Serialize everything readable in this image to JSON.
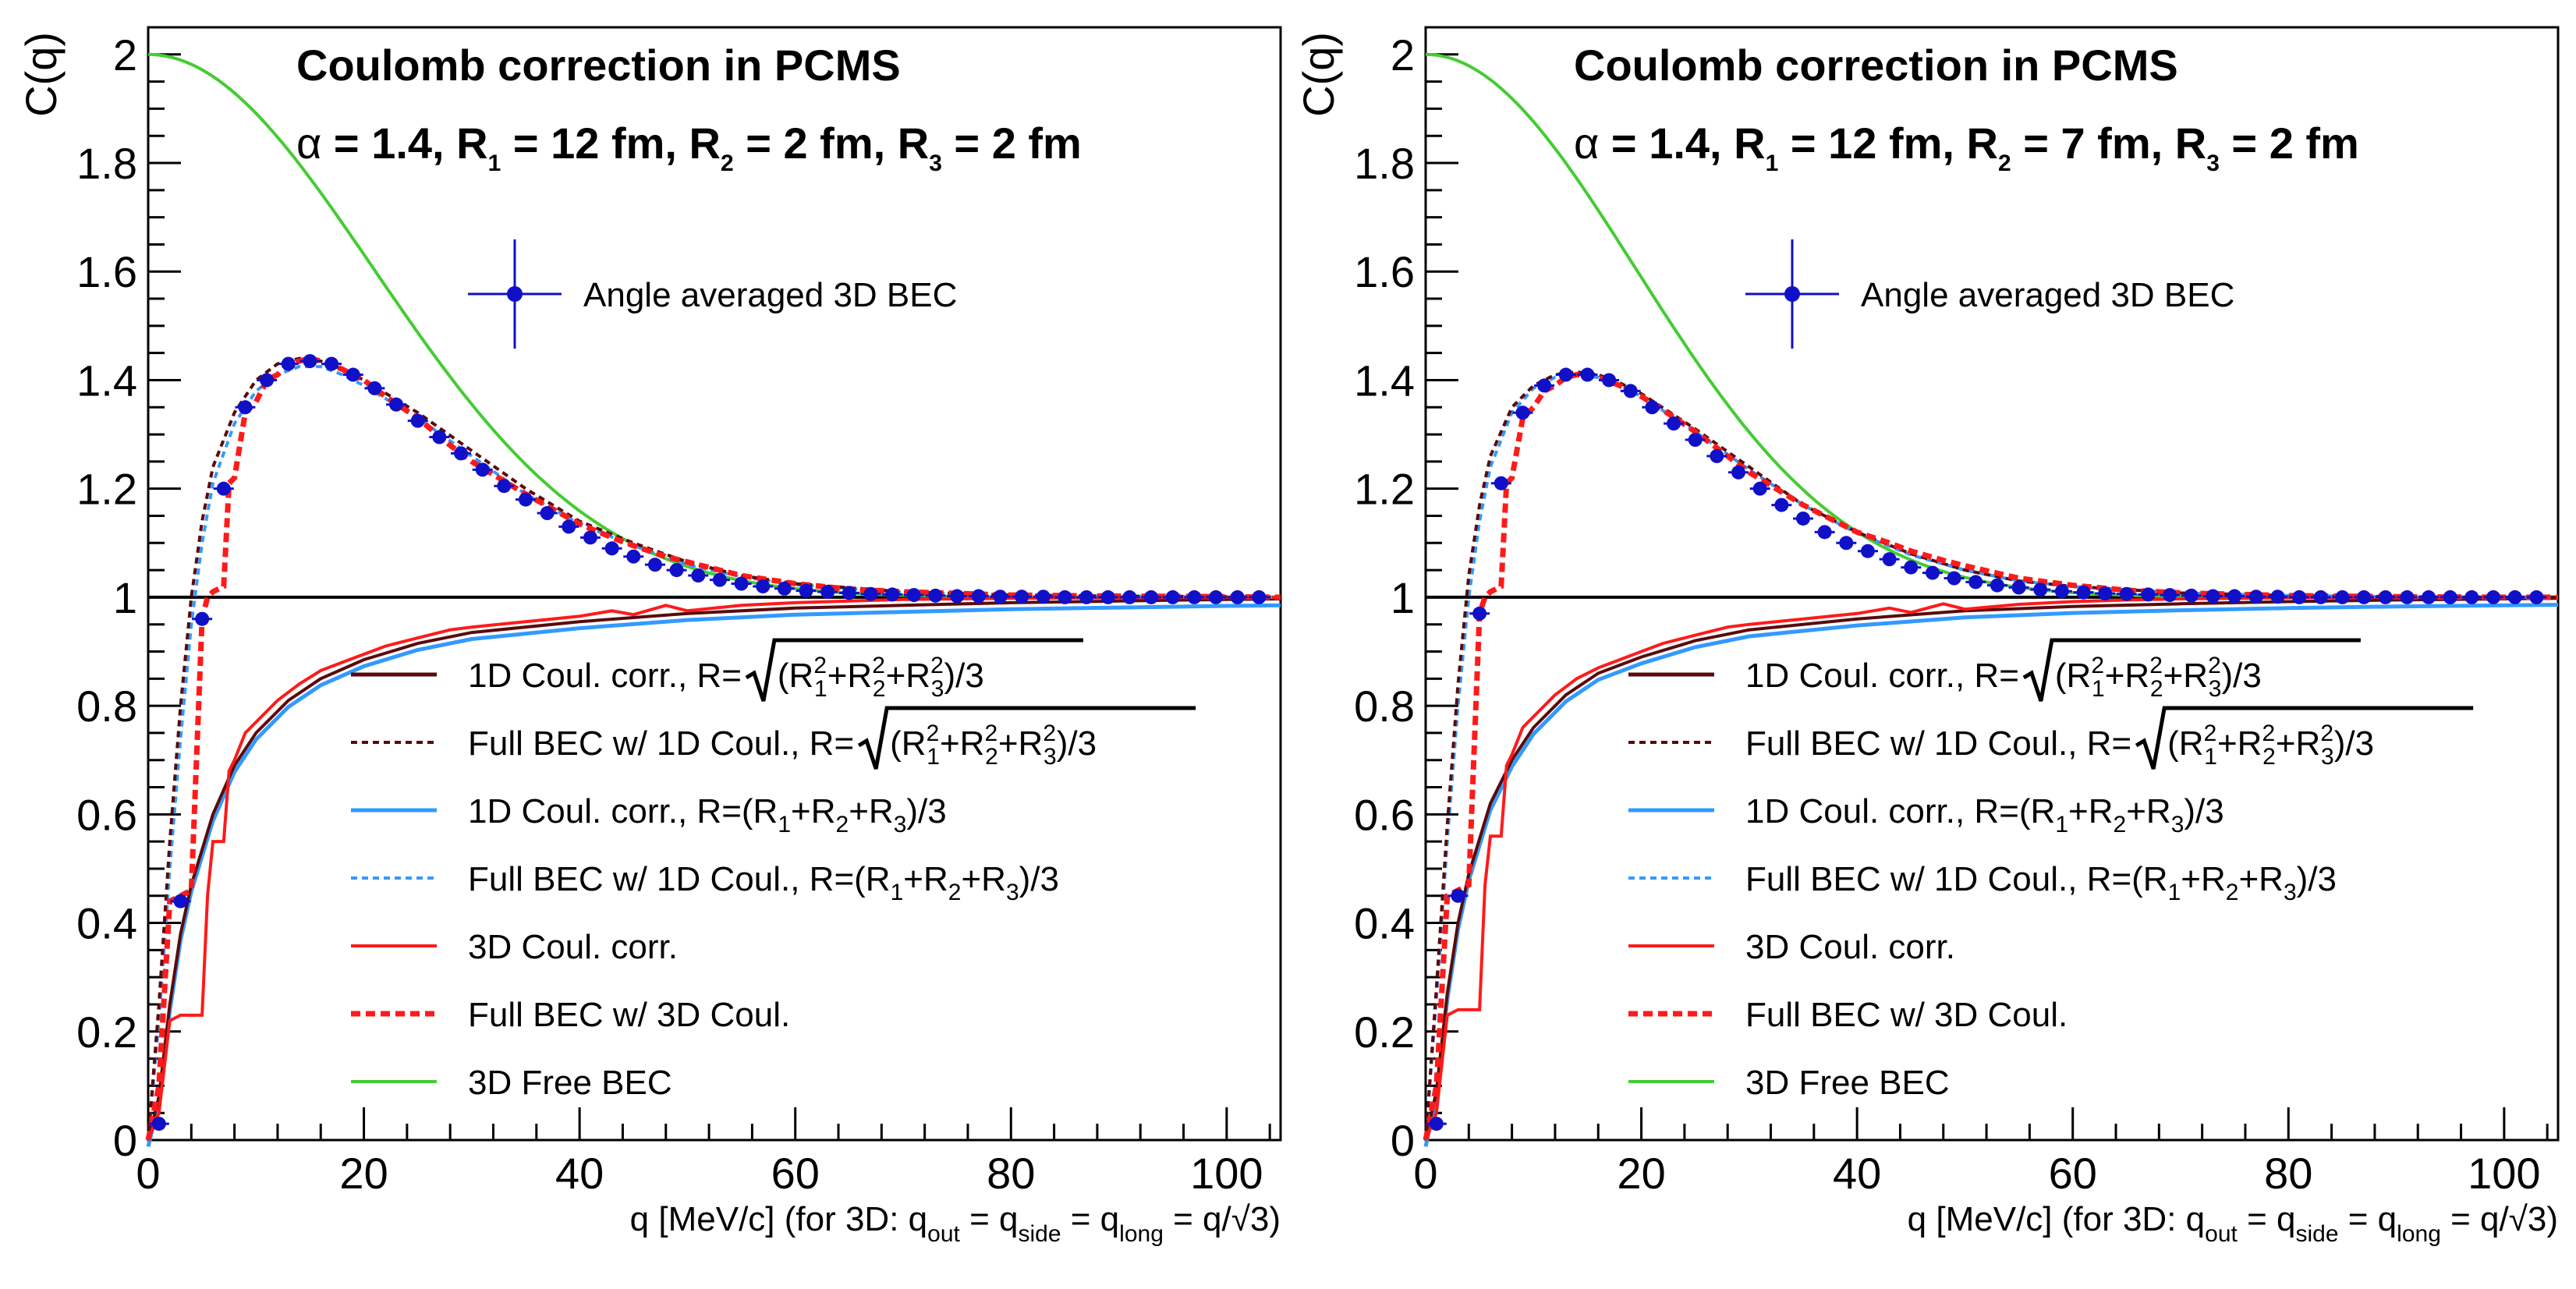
{
  "chart_data": [
    {
      "id": "left",
      "type": "line",
      "title": "Coulomb correction in PCMS",
      "params": {
        "alpha": "1.4",
        "R1": "12",
        "R2": "2",
        "R3": "2",
        "unit": "fm"
      },
      "xlabel": "q [MeV/c] (for 3D: q_out = q_side = q_long = q/√3)",
      "ylabel": "C(q)",
      "xlim": [
        0,
        105
      ],
      "ylim": [
        0,
        2.05
      ],
      "xticks": [
        "0",
        "20",
        "40",
        "60",
        "80",
        "100"
      ],
      "yticks": [
        "0",
        "0.2",
        "0.4",
        "0.6",
        "0.8",
        "1",
        "1.2",
        "1.4",
        "1.6",
        "1.8",
        "2"
      ],
      "reference_line": 1,
      "legend_top": "Angle averaged 3D BEC",
      "legend": [
        {
          "label_pre": "1D Coul. corr., R=",
          "formula": "sqrt"
        },
        {
          "label_pre": "Full BEC w/ 1D Coul., R=",
          "formula": "sqrt"
        },
        {
          "label_pre": "1D Coul. corr., R=",
          "formula": "mean"
        },
        {
          "label_pre": "Full BEC w/ 1D Coul., R=",
          "formula": "mean"
        },
        {
          "label_pre": "3D Coul. corr.",
          "formula": ""
        },
        {
          "label_pre": "Full BEC w/ 3D Coul.",
          "formula": ""
        },
        {
          "label_pre": "3D Free BEC",
          "formula": ""
        }
      ],
      "series": {
        "bec_points": {
          "name": "Angle averaged 3D BEC",
          "x": [
            1,
            3,
            5,
            7,
            9,
            11,
            13,
            15,
            17,
            19,
            21,
            23,
            25,
            27,
            29,
            31,
            33,
            35,
            37,
            39,
            41,
            43,
            45,
            47,
            49,
            51,
            53,
            55,
            57,
            59,
            61,
            63,
            65,
            67,
            69,
            71,
            73,
            75,
            77,
            79,
            81,
            83,
            85,
            87,
            89,
            91,
            93,
            95,
            97,
            99,
            101,
            103
          ],
          "y": [
            0.03,
            0.44,
            0.96,
            1.2,
            1.35,
            1.4,
            1.43,
            1.435,
            1.43,
            1.41,
            1.385,
            1.355,
            1.325,
            1.295,
            1.265,
            1.235,
            1.205,
            1.18,
            1.155,
            1.13,
            1.11,
            1.09,
            1.075,
            1.06,
            1.05,
            1.04,
            1.032,
            1.025,
            1.02,
            1.016,
            1.012,
            1.01,
            1.008,
            1.006,
            1.005,
            1.004,
            1.003,
            1.002,
            1.002,
            1.001,
            1.001,
            1.001,
            1.0,
            1.0,
            1.0,
            1.0,
            1.0,
            1.0,
            1.0,
            1.0,
            1.0,
            1.0
          ]
        },
        "free_bec": {
          "name": "3D Free BEC",
          "peak": 2.0,
          "tail": 1.0,
          "peak_q": 0,
          "width": 29.5
        },
        "coul_1d": {
          "name": "1D Coul. corr. (both R choices)",
          "x": [
            0,
            1,
            2,
            3,
            4,
            6,
            8,
            10,
            13,
            16,
            20,
            25,
            30,
            40,
            50,
            60,
            70,
            80,
            90,
            100,
            105
          ],
          "y": [
            0,
            0.08,
            0.25,
            0.38,
            0.47,
            0.6,
            0.69,
            0.75,
            0.81,
            0.85,
            0.885,
            0.915,
            0.935,
            0.955,
            0.97,
            0.98,
            0.985,
            0.99,
            0.993,
            0.996,
            0.997
          ]
        },
        "coul_3d": {
          "name": "3D Coul. corr.",
          "x": [
            0,
            1,
            2,
            3,
            4,
            5,
            5.5,
            6,
            7,
            7.5,
            8,
            9,
            10,
            11,
            12,
            13,
            14,
            16,
            18,
            20,
            22,
            25,
            28,
            30,
            35,
            40,
            43,
            45,
            48,
            50,
            55,
            60,
            65,
            70,
            80,
            90,
            100,
            105
          ],
          "y": [
            0,
            0.05,
            0.22,
            0.23,
            0.23,
            0.23,
            0.45,
            0.55,
            0.55,
            0.68,
            0.7,
            0.75,
            0.77,
            0.79,
            0.81,
            0.825,
            0.84,
            0.865,
            0.88,
            0.895,
            0.91,
            0.925,
            0.94,
            0.945,
            0.955,
            0.965,
            0.975,
            0.968,
            0.985,
            0.975,
            0.985,
            0.99,
            0.993,
            0.996,
            0.998,
            0.999,
            1.0,
            1.0
          ]
        },
        "full_bec_1d_sqrt": {
          "name": "Full BEC w/ 1D Coul. (sqrt R)",
          "x": [
            0,
            1,
            2,
            3,
            4,
            5,
            6,
            8,
            10,
            12,
            14,
            16,
            18,
            20,
            25,
            30,
            35,
            40,
            45,
            50,
            55,
            60,
            70,
            80,
            90,
            100,
            105
          ],
          "y": [
            0,
            0.25,
            0.55,
            0.8,
            1.0,
            1.14,
            1.24,
            1.34,
            1.4,
            1.43,
            1.44,
            1.435,
            1.42,
            1.4,
            1.34,
            1.27,
            1.2,
            1.14,
            1.1,
            1.065,
            1.04,
            1.025,
            1.01,
            1.004,
            1.002,
            1.001,
            1.0
          ]
        },
        "full_bec_1d_mean": {
          "name": "Full BEC w/ 1D Coul. (mean R)",
          "x": [
            0,
            1,
            2,
            3,
            4,
            5,
            6,
            8,
            10,
            12,
            14,
            16,
            18,
            20,
            25,
            30,
            35,
            40,
            45,
            50,
            55,
            60,
            70,
            80,
            90,
            100,
            105
          ],
          "y": [
            0,
            0.22,
            0.5,
            0.74,
            0.95,
            1.1,
            1.21,
            1.32,
            1.38,
            1.41,
            1.425,
            1.425,
            1.41,
            1.39,
            1.33,
            1.26,
            1.19,
            1.135,
            1.095,
            1.06,
            1.038,
            1.023,
            1.009,
            1.004,
            1.002,
            1.001,
            1.0
          ]
        },
        "full_bec_3d": {
          "name": "Full BEC w/ 3D Coul.",
          "x": [
            0,
            1,
            2,
            3,
            4,
            5,
            5.5,
            6,
            7,
            7.5,
            8,
            9,
            10,
            11,
            12,
            13,
            14,
            15,
            16,
            18,
            20,
            22,
            25,
            28,
            30,
            35,
            40,
            43,
            45,
            48,
            50,
            55,
            60,
            65,
            70,
            80,
            90,
            100,
            105
          ],
          "y": [
            0,
            0.1,
            0.44,
            0.45,
            0.46,
            0.96,
            1.0,
            1.01,
            1.02,
            1.21,
            1.22,
            1.34,
            1.36,
            1.4,
            1.41,
            1.43,
            1.435,
            1.44,
            1.435,
            1.42,
            1.4,
            1.37,
            1.33,
            1.28,
            1.25,
            1.19,
            1.135,
            1.11,
            1.095,
            1.075,
            1.065,
            1.04,
            1.025,
            1.015,
            1.01,
            1.004,
            1.002,
            1.001,
            1.0
          ]
        }
      }
    },
    {
      "id": "right",
      "type": "line",
      "title": "Coulomb correction in PCMS",
      "params": {
        "alpha": "1.4",
        "R1": "12",
        "R2": "7",
        "R3": "2",
        "unit": "fm"
      },
      "xlabel": "q [MeV/c] (for 3D: q_out = q_side = q_long = q/√3)",
      "ylabel": "C(q)",
      "xlim": [
        0,
        105
      ],
      "ylim": [
        0,
        2.05
      ],
      "xticks": [
        "0",
        "20",
        "40",
        "60",
        "80",
        "100"
      ],
      "yticks": [
        "0",
        "0.2",
        "0.4",
        "0.6",
        "0.8",
        "1",
        "1.2",
        "1.4",
        "1.6",
        "1.8",
        "2"
      ],
      "reference_line": 1,
      "legend_top": "Angle averaged 3D BEC",
      "legend": [
        {
          "label_pre": "1D Coul. corr., R=",
          "formula": "sqrt"
        },
        {
          "label_pre": "Full BEC w/ 1D Coul., R=",
          "formula": "sqrt"
        },
        {
          "label_pre": "1D Coul. corr., R=",
          "formula": "mean"
        },
        {
          "label_pre": "Full BEC w/ 1D Coul., R=",
          "formula": "mean"
        },
        {
          "label_pre": "3D Coul. corr.",
          "formula": ""
        },
        {
          "label_pre": "Full BEC w/ 3D Coul.",
          "formula": ""
        },
        {
          "label_pre": "3D Free BEC",
          "formula": ""
        }
      ],
      "series": {
        "bec_points": {
          "name": "Angle averaged 3D BEC",
          "x": [
            1,
            3,
            5,
            7,
            9,
            11,
            13,
            15,
            17,
            19,
            21,
            23,
            25,
            27,
            29,
            31,
            33,
            35,
            37,
            39,
            41,
            43,
            45,
            47,
            49,
            51,
            53,
            55,
            57,
            59,
            61,
            63,
            65,
            67,
            69,
            71,
            73,
            75,
            77,
            79,
            81,
            83,
            85,
            87,
            89,
            91,
            93,
            95,
            97,
            99,
            101,
            103
          ],
          "y": [
            0.03,
            0.45,
            0.97,
            1.21,
            1.34,
            1.39,
            1.41,
            1.41,
            1.4,
            1.38,
            1.35,
            1.32,
            1.29,
            1.26,
            1.23,
            1.2,
            1.17,
            1.145,
            1.12,
            1.1,
            1.085,
            1.07,
            1.055,
            1.045,
            1.035,
            1.028,
            1.022,
            1.018,
            1.014,
            1.011,
            1.009,
            1.007,
            1.006,
            1.005,
            1.004,
            1.003,
            1.002,
            1.002,
            1.001,
            1.001,
            1.0,
            1.0,
            1.0,
            1.0,
            1.0,
            1.0,
            1.0,
            1.0,
            1.0,
            1.0,
            1.0,
            1.0
          ]
        },
        "free_bec": {
          "name": "3D Free BEC",
          "peak": 2.0,
          "tail": 1.0,
          "peak_q": 0,
          "width": 27.5
        },
        "coul_1d": {
          "name": "1D Coul. corr. (both R choices)",
          "x": [
            0,
            1,
            2,
            3,
            4,
            6,
            8,
            10,
            13,
            16,
            20,
            25,
            30,
            40,
            50,
            60,
            70,
            80,
            90,
            100,
            105
          ],
          "y": [
            0,
            0.09,
            0.27,
            0.4,
            0.49,
            0.62,
            0.7,
            0.76,
            0.82,
            0.86,
            0.89,
            0.92,
            0.94,
            0.96,
            0.975,
            0.983,
            0.988,
            0.992,
            0.995,
            0.997,
            0.998
          ]
        },
        "coul_3d": {
          "name": "3D Coul. corr.",
          "x": [
            0,
            1,
            2,
            3,
            4,
            5,
            5.5,
            6,
            7,
            7.5,
            8,
            9,
            10,
            11,
            12,
            13,
            14,
            16,
            18,
            20,
            22,
            25,
            28,
            30,
            35,
            40,
            43,
            45,
            48,
            50,
            55,
            60,
            65,
            70,
            80,
            90,
            100,
            105
          ],
          "y": [
            0,
            0.05,
            0.23,
            0.24,
            0.24,
            0.24,
            0.47,
            0.56,
            0.56,
            0.69,
            0.71,
            0.76,
            0.78,
            0.8,
            0.82,
            0.835,
            0.85,
            0.87,
            0.885,
            0.9,
            0.915,
            0.93,
            0.945,
            0.95,
            0.96,
            0.97,
            0.98,
            0.972,
            0.988,
            0.978,
            0.987,
            0.992,
            0.995,
            0.997,
            0.999,
            1.0,
            1.0,
            1.0
          ]
        },
        "full_bec_1d_sqrt": {
          "name": "Full BEC w/ 1D Coul. (sqrt R)",
          "x": [
            0,
            1,
            2,
            3,
            4,
            5,
            6,
            8,
            10,
            12,
            14,
            16,
            18,
            20,
            25,
            30,
            35,
            40,
            45,
            50,
            55,
            60,
            70,
            80,
            90,
            100,
            105
          ],
          "y": [
            0,
            0.28,
            0.58,
            0.84,
            1.04,
            1.17,
            1.26,
            1.35,
            1.39,
            1.41,
            1.415,
            1.41,
            1.395,
            1.375,
            1.31,
            1.24,
            1.17,
            1.12,
            1.08,
            1.05,
            1.03,
            1.02,
            1.008,
            1.003,
            1.001,
            1.0,
            1.0
          ]
        },
        "full_bec_1d_mean": {
          "name": "Full BEC w/ 1D Coul. (mean R)",
          "x": [
            0,
            1,
            2,
            3,
            4,
            5,
            6,
            8,
            10,
            12,
            14,
            16,
            18,
            20,
            25,
            30,
            35,
            40,
            45,
            50,
            55,
            60,
            70,
            80,
            90,
            100,
            105
          ],
          "y": [
            0,
            0.26,
            0.55,
            0.8,
            1.0,
            1.14,
            1.24,
            1.34,
            1.385,
            1.405,
            1.41,
            1.405,
            1.39,
            1.37,
            1.305,
            1.235,
            1.17,
            1.118,
            1.078,
            1.05,
            1.03,
            1.02,
            1.008,
            1.003,
            1.001,
            1.0,
            1.0
          ]
        },
        "full_bec_3d": {
          "name": "Full BEC w/ 3D Coul.",
          "x": [
            0,
            1,
            2,
            3,
            4,
            5,
            5.5,
            6,
            7,
            7.5,
            8,
            9,
            10,
            11,
            12,
            13,
            14,
            15,
            16,
            18,
            20,
            22,
            25,
            28,
            30,
            35,
            40,
            43,
            45,
            48,
            50,
            55,
            60,
            65,
            70,
            80,
            90,
            100,
            105
          ],
          "y": [
            0,
            0.1,
            0.45,
            0.46,
            0.47,
            0.97,
            1.0,
            1.01,
            1.02,
            1.21,
            1.22,
            1.33,
            1.35,
            1.38,
            1.39,
            1.405,
            1.41,
            1.41,
            1.405,
            1.39,
            1.37,
            1.345,
            1.305,
            1.26,
            1.23,
            1.17,
            1.12,
            1.1,
            1.085,
            1.068,
            1.058,
            1.035,
            1.022,
            1.013,
            1.008,
            1.003,
            1.001,
            1.0,
            1.0
          ]
        }
      }
    }
  ],
  "colors": {
    "frame": "#000000",
    "bec_points": "#1010c8",
    "free_bec": "#44cc33",
    "coul_1d_sqrt": "#5a0a0a",
    "coul_1d_mean": "#3399ff",
    "coul_3d": "#ff1a1a"
  }
}
